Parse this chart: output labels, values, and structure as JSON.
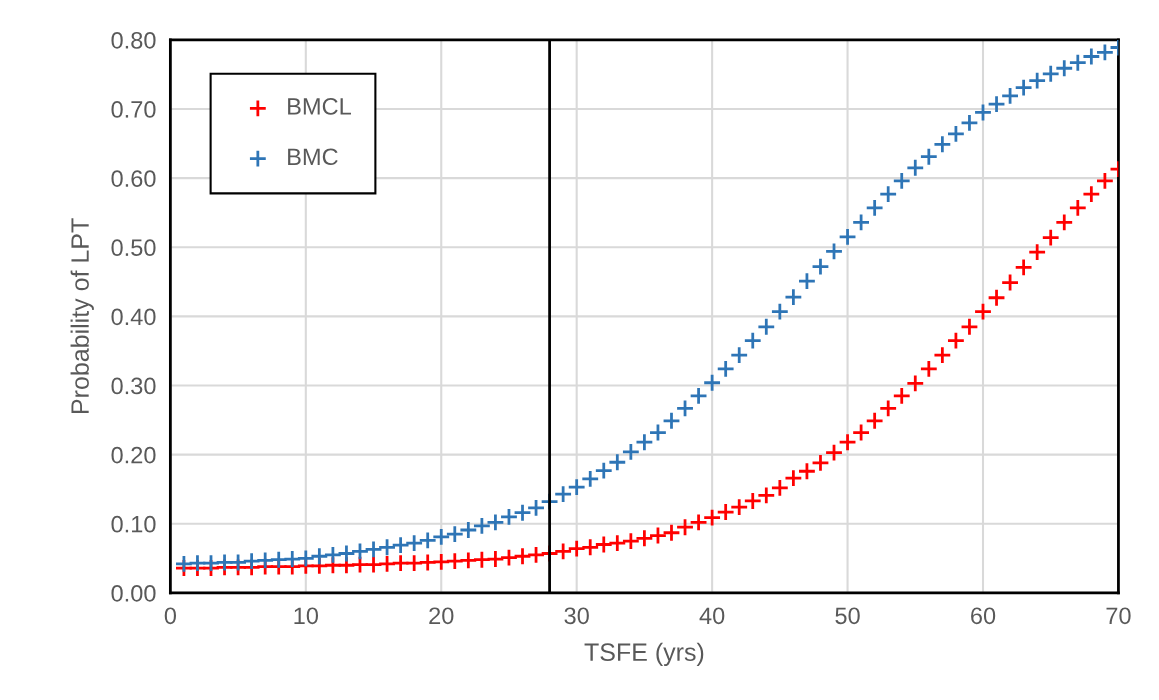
{
  "chart_data": {
    "type": "scatter",
    "xlabel": "TSFE (yrs)",
    "ylabel": "Probability of LPT",
    "x": [
      1,
      2,
      3,
      4,
      5,
      6,
      7,
      8,
      9,
      10,
      11,
      12,
      13,
      14,
      15,
      16,
      17,
      18,
      19,
      20,
      21,
      22,
      23,
      24,
      25,
      26,
      27,
      28,
      29,
      30,
      31,
      32,
      33,
      34,
      35,
      36,
      37,
      38,
      39,
      40,
      41,
      42,
      43,
      44,
      45,
      46,
      47,
      48,
      49,
      50,
      51,
      52,
      53,
      54,
      55,
      56,
      57,
      58,
      59,
      60,
      61,
      62,
      63,
      64,
      65,
      66,
      67,
      68,
      69,
      70
    ],
    "series": [
      {
        "name": "BMCL",
        "color": "#ff0000",
        "values": [
          0.036,
          0.036,
          0.036,
          0.037,
          0.037,
          0.037,
          0.038,
          0.038,
          0.038,
          0.039,
          0.039,
          0.04,
          0.04,
          0.041,
          0.041,
          0.042,
          0.043,
          0.043,
          0.044,
          0.045,
          0.046,
          0.047,
          0.048,
          0.049,
          0.051,
          0.053,
          0.055,
          0.057,
          0.06,
          0.064,
          0.066,
          0.07,
          0.072,
          0.075,
          0.079,
          0.083,
          0.087,
          0.095,
          0.102,
          0.109,
          0.117,
          0.124,
          0.133,
          0.141,
          0.152,
          0.166,
          0.176,
          0.188,
          0.203,
          0.218,
          0.232,
          0.249,
          0.267,
          0.285,
          0.303,
          0.324,
          0.344,
          0.365,
          0.385,
          0.407,
          0.427,
          0.449,
          0.471,
          0.493,
          0.514,
          0.536,
          0.557,
          0.577,
          0.596,
          0.613
        ]
      },
      {
        "name": "BMC",
        "color": "#2e75b6",
        "values": [
          0.042,
          0.043,
          0.043,
          0.044,
          0.044,
          0.046,
          0.047,
          0.048,
          0.049,
          0.05,
          0.053,
          0.055,
          0.057,
          0.06,
          0.063,
          0.066,
          0.069,
          0.072,
          0.076,
          0.081,
          0.085,
          0.091,
          0.097,
          0.102,
          0.11,
          0.116,
          0.123,
          0.132,
          0.143,
          0.153,
          0.165,
          0.177,
          0.189,
          0.204,
          0.218,
          0.232,
          0.249,
          0.267,
          0.285,
          0.304,
          0.324,
          0.344,
          0.365,
          0.385,
          0.407,
          0.428,
          0.451,
          0.472,
          0.494,
          0.515,
          0.536,
          0.557,
          0.577,
          0.596,
          0.615,
          0.631,
          0.649,
          0.664,
          0.68,
          0.695,
          0.707,
          0.719,
          0.731,
          0.741,
          0.751,
          0.759,
          0.767,
          0.776,
          0.782,
          0.789
        ]
      }
    ],
    "xlim": [
      0,
      70
    ],
    "xticks": [
      0,
      10,
      20,
      30,
      40,
      50,
      60,
      70
    ],
    "ylim": [
      0,
      0.8
    ],
    "yticks": [
      {
        "value": 0,
        "label": "0.00"
      },
      {
        "value": 0.1,
        "label": "0.10"
      },
      {
        "value": 0.2,
        "label": "0.20"
      },
      {
        "value": 0.3,
        "label": "0.30"
      },
      {
        "value": 0.4,
        "label": "0.40"
      },
      {
        "value": 0.5,
        "label": "0.50"
      },
      {
        "value": 0.6,
        "label": "0.60"
      },
      {
        "value": 0.7,
        "label": "0.70"
      },
      {
        "value": 0.8,
        "label": "0.80"
      }
    ],
    "ref_lines": [
      {
        "axis": "x",
        "value": 28,
        "color": "#000000"
      }
    ],
    "grid": true,
    "legend": "top left",
    "marker": "cross"
  }
}
